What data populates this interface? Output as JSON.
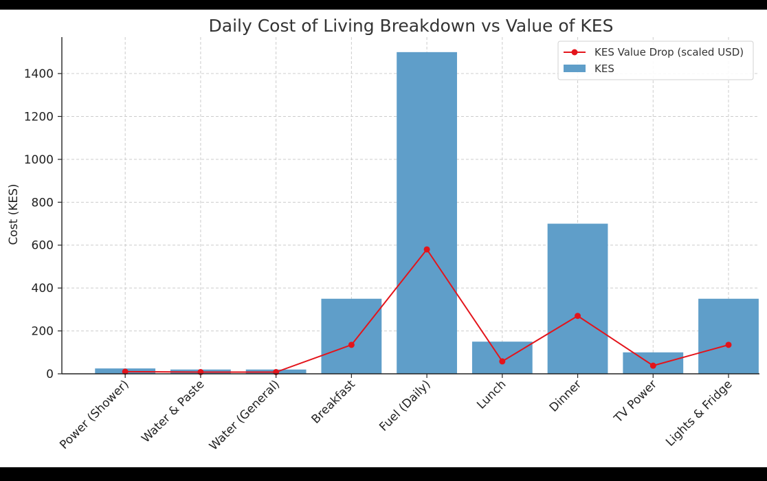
{
  "chart_data": {
    "type": "bar",
    "title": "Daily Cost of Living Breakdown vs Value of KES",
    "xlabel": "",
    "ylabel": "Cost (KES)",
    "ylim": [
      0,
      1570
    ],
    "yticks": [
      0,
      200,
      400,
      600,
      800,
      1000,
      1200,
      1400
    ],
    "grid": true,
    "legend_position": "top-right",
    "categories": [
      "Power (Shower)",
      "Water & Paste",
      "Water (General)",
      "Breakfast",
      "Fuel (Daily)",
      "Lunch",
      "Dinner",
      "TV Power",
      "Lights & Fridge"
    ],
    "series": [
      {
        "name": "KES",
        "kind": "bar",
        "color": "#5f9ec9",
        "values": [
          25,
          20,
          20,
          350,
          1500,
          150,
          700,
          100,
          350
        ]
      },
      {
        "name": "KES Value Drop (scaled USD)",
        "kind": "line",
        "color": "#e3141b",
        "values": [
          10,
          8,
          8,
          135,
          580,
          58,
          270,
          38,
          135
        ]
      }
    ]
  }
}
